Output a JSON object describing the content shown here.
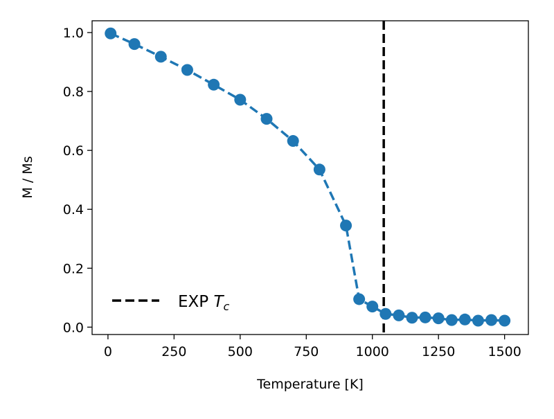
{
  "chart_data": {
    "type": "line",
    "title": "",
    "xlabel": "Temperature [K]",
    "ylabel": "M / Ms",
    "xlim": [
      -60,
      1590
    ],
    "ylim": [
      -0.025,
      1.04
    ],
    "x_ticks": [
      0,
      250,
      500,
      750,
      1000,
      1250,
      1500
    ],
    "y_ticks": [
      0.0,
      0.2,
      0.4,
      0.6,
      0.8,
      1.0
    ],
    "x_tick_labels": [
      "0",
      "250",
      "500",
      "750",
      "1000",
      "1250",
      "1500"
    ],
    "y_tick_labels": [
      "0.0",
      "0.2",
      "0.4",
      "0.6",
      "0.8",
      "1.0"
    ],
    "grid": false,
    "series": [
      {
        "style": "dashed-line-with-circle-markers",
        "color": "#1f77b4",
        "x": [
          10,
          100,
          200,
          300,
          400,
          500,
          600,
          700,
          800,
          900,
          950,
          1000,
          1050,
          1100,
          1150,
          1200,
          1250,
          1300,
          1350,
          1400,
          1450,
          1500
        ],
        "y": [
          0.997,
          0.961,
          0.918,
          0.873,
          0.823,
          0.772,
          0.707,
          0.632,
          0.535,
          0.345,
          0.095,
          0.07,
          0.045,
          0.04,
          0.032,
          0.033,
          0.03,
          0.024,
          0.026,
          0.022,
          0.024,
          0.022
        ]
      }
    ],
    "reference_lines": [
      {
        "orientation": "vertical",
        "x": 1043,
        "style": "dashed",
        "color": "#000000",
        "label_text": "EXP ",
        "label_math": "T",
        "label_sub": "c"
      }
    ],
    "legend": {
      "placement": "lower-left"
    }
  }
}
